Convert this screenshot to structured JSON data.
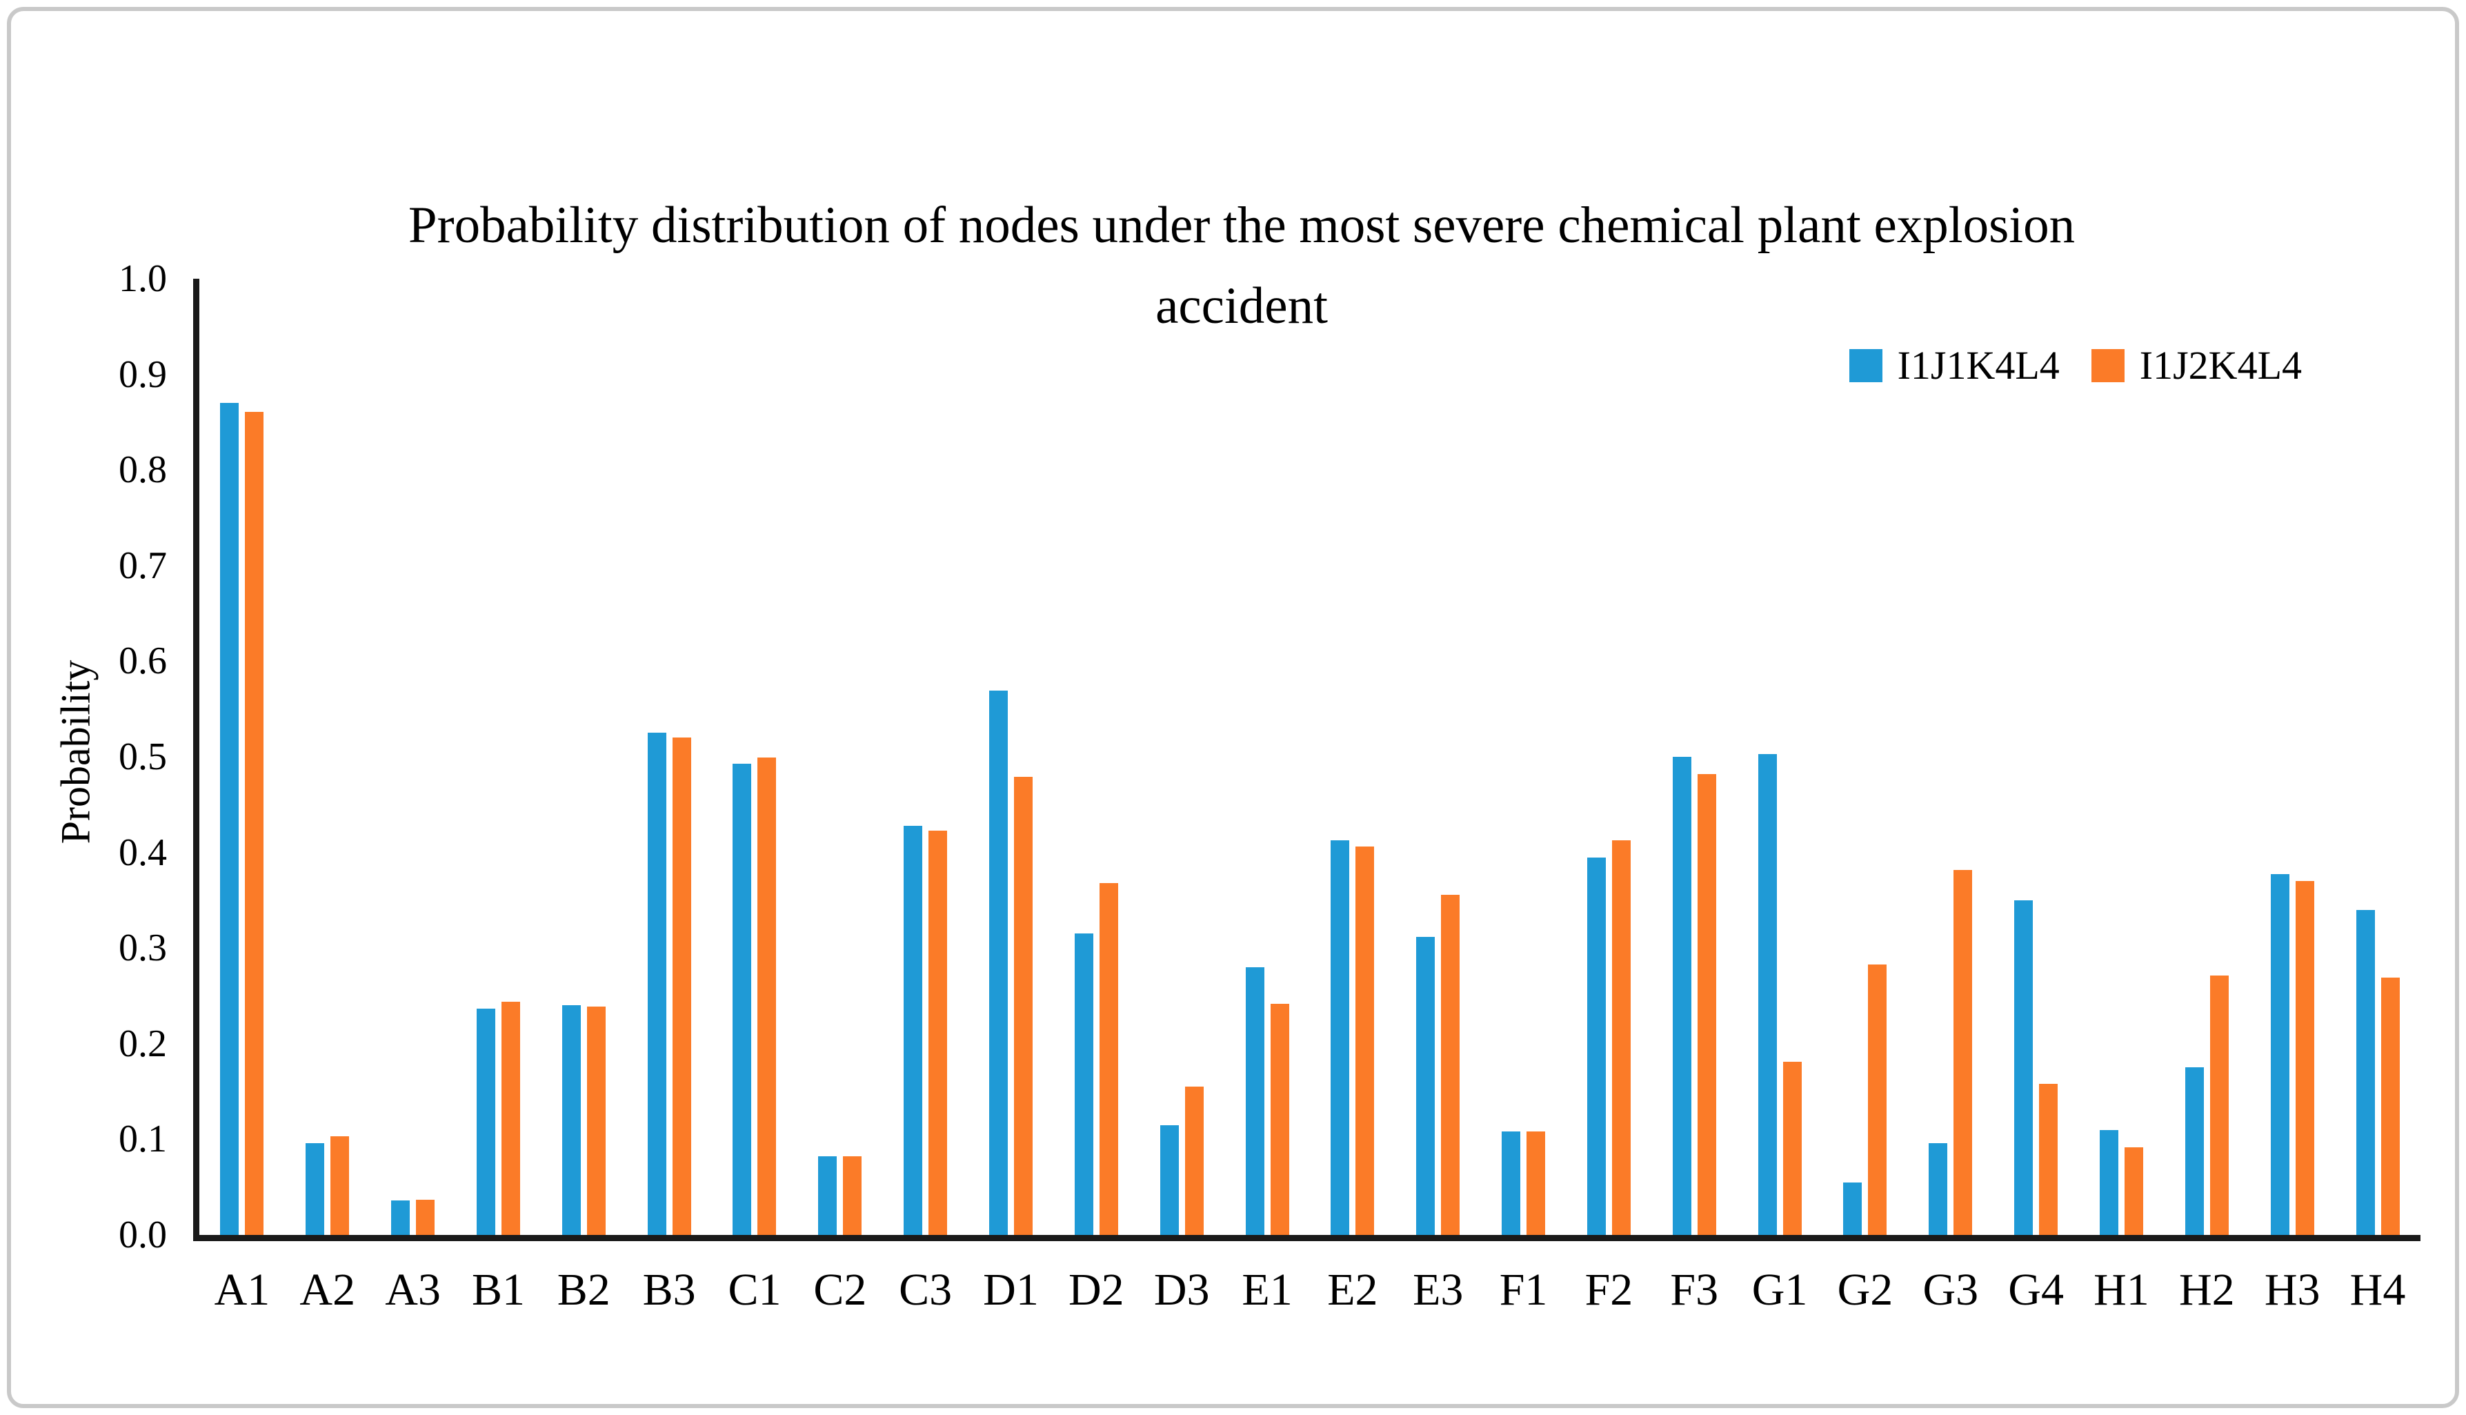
{
  "figure": {
    "background": "#ffffff",
    "border_color": "#c9c9c9",
    "axis_color": "#1a1a1a"
  },
  "chart_data": {
    "type": "bar",
    "title_lines": [
      "Probability distribution of nodes under the most severe chemical plant explosion",
      "accident"
    ],
    "title": "Probability distribution of nodes under the most severe chemical plant explosion accident",
    "xlabel": "",
    "ylabel": "Probability",
    "ylim": [
      0.0,
      1.0
    ],
    "yticks": [
      "0.0",
      "0.1",
      "0.2",
      "0.3",
      "0.4",
      "0.5",
      "0.6",
      "0.7",
      "0.8",
      "0.9",
      "1.0"
    ],
    "grid": false,
    "legend_position": "top-right",
    "categories": [
      "A1",
      "A2",
      "A3",
      "B1",
      "B2",
      "B3",
      "C1",
      "C2",
      "C3",
      "D1",
      "D2",
      "D3",
      "E1",
      "E2",
      "E3",
      "F1",
      "F2",
      "F3",
      "G1",
      "G2",
      "G3",
      "G4",
      "H1",
      "H2",
      "H3",
      "H4"
    ],
    "series": [
      {
        "name": "I1J1K4L4",
        "color": "#1f9ad6",
        "values": [
          0.87,
          0.096,
          0.036,
          0.237,
          0.24,
          0.525,
          0.493,
          0.082,
          0.428,
          0.569,
          0.315,
          0.115,
          0.28,
          0.413,
          0.312,
          0.108,
          0.395,
          0.5,
          0.503,
          0.055,
          0.096,
          0.35,
          0.11,
          0.175,
          0.377,
          0.34
        ]
      },
      {
        "name": "I1J2K4L4",
        "color": "#fb7b28",
        "values": [
          0.861,
          0.103,
          0.037,
          0.244,
          0.239,
          0.52,
          0.499,
          0.082,
          0.423,
          0.479,
          0.368,
          0.155,
          0.242,
          0.406,
          0.356,
          0.108,
          0.413,
          0.482,
          0.181,
          0.283,
          0.382,
          0.158,
          0.092,
          0.271,
          0.37,
          0.269
        ]
      }
    ]
  }
}
